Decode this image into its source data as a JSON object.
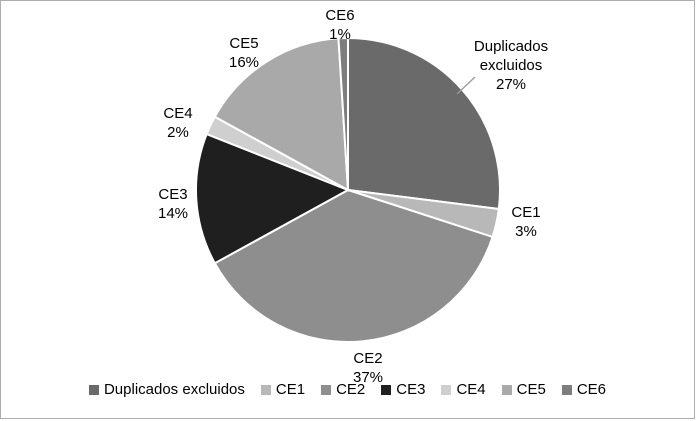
{
  "chart_data": {
    "type": "pie",
    "title": "",
    "start_angle_deg_from_top": 0,
    "direction": "clockwise",
    "legend_position": "bottom",
    "slices": [
      {
        "label": "Duplicados excluidos",
        "value": 27,
        "pct_label": "27%",
        "color": "#6a6a6a"
      },
      {
        "label": "CE1",
        "value": 3,
        "pct_label": "3%",
        "color": "#b8b8b8"
      },
      {
        "label": "CE2",
        "value": 37,
        "pct_label": "37%",
        "color": "#8e8e8e"
      },
      {
        "label": "CE3",
        "value": 14,
        "pct_label": "14%",
        "color": "#1f1f1f"
      },
      {
        "label": "CE4",
        "value": 2,
        "pct_label": "2%",
        "color": "#cfcfcf"
      },
      {
        "label": "CE5",
        "value": 16,
        "pct_label": "16%",
        "color": "#a9a9a9"
      },
      {
        "label": "CE6",
        "value": 1,
        "pct_label": "1%",
        "color": "#7d7d7d"
      }
    ],
    "legend": [
      "Duplicados excluidos",
      "CE1",
      "CE2",
      "CE3",
      "CE4",
      "CE5",
      "CE6"
    ]
  }
}
